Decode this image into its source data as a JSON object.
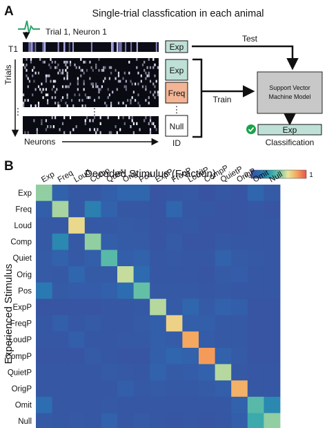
{
  "panel_a": {
    "letter": "A",
    "title": "Single-trial classfication in each animal",
    "trial_neuron_label": "Trial 1, Neuron 1",
    "t1_label": "T1",
    "trials_label": "Trials",
    "neurons_label": "Neurons",
    "ellipsis": "⋮",
    "test_label": "Test",
    "train_label": "Train",
    "id_boxes": [
      {
        "label": "Exp",
        "color": "#bfe0d6"
      },
      {
        "label": "Freq",
        "color": "#f2b595"
      },
      {
        "label": "Null",
        "color": "#ffffff"
      }
    ],
    "test_box": {
      "label": "Exp",
      "color": "#bfe0d6"
    },
    "id_label": "ID",
    "svm_label_line1": "Support Vector",
    "svm_label_line2": "Machine Model",
    "output_box": {
      "label": "Exp",
      "color": "#bfe0d6"
    },
    "classification_label": "Classification",
    "check_color": "#1aa34a",
    "trace_color": "#2ca36b"
  },
  "panel_b": {
    "letter": "B",
    "title": "Decoded Stimulus (Fraction)",
    "colorbar_min": "0",
    "colorbar_max": "1",
    "ylabel": "Experienced Stimulus",
    "colormap": [
      "#3a4fa0",
      "#2b6fb2",
      "#2aa0b0",
      "#6cc3a6",
      "#e7e69a",
      "#f6a35a",
      "#e8544c"
    ]
  },
  "chart_data": {
    "type": "heatmap",
    "title": "Decoded Stimulus (Fraction)",
    "xlabel": "Decoded Stimulus (Fraction)",
    "ylabel": "Experienced Stimulus",
    "x_categories": [
      "Exp",
      "Freq",
      "Loud",
      "Comp",
      "Quiet",
      "Orig",
      "Pos",
      "ExpP",
      "FreqP",
      "LoudP",
      "CompP",
      "QuietP",
      "OrigP",
      "Omit",
      "Null"
    ],
    "y_categories": [
      "Exp",
      "Freq",
      "Loud",
      "Comp",
      "Quiet",
      "Orig",
      "Pos",
      "ExpP",
      "FreqP",
      "LoudP",
      "CompP",
      "QuietP",
      "OrigP",
      "Omit",
      "Null"
    ],
    "value_range": [
      0,
      1
    ],
    "values": [
      [
        0.55,
        0.1,
        0.05,
        0.05,
        0.08,
        0.12,
        0.12,
        0.03,
        0.04,
        0.05,
        0.02,
        0.04,
        0.03,
        0.12,
        0.06
      ],
      [
        0.08,
        0.58,
        0.05,
        0.22,
        0.1,
        0.04,
        0.04,
        0.03,
        0.12,
        0.04,
        0.04,
        0.03,
        0.03,
        0.04,
        0.03
      ],
      [
        0.05,
        0.05,
        0.7,
        0.05,
        0.05,
        0.06,
        0.05,
        0.03,
        0.04,
        0.05,
        0.03,
        0.03,
        0.03,
        0.04,
        0.04
      ],
      [
        0.05,
        0.25,
        0.05,
        0.55,
        0.08,
        0.06,
        0.06,
        0.03,
        0.06,
        0.03,
        0.03,
        0.05,
        0.04,
        0.04,
        0.04
      ],
      [
        0.06,
        0.1,
        0.05,
        0.08,
        0.45,
        0.08,
        0.1,
        0.04,
        0.05,
        0.04,
        0.04,
        0.1,
        0.06,
        0.05,
        0.04
      ],
      [
        0.06,
        0.05,
        0.12,
        0.06,
        0.06,
        0.62,
        0.14,
        0.04,
        0.04,
        0.04,
        0.03,
        0.06,
        0.07,
        0.04,
        0.04
      ],
      [
        0.2,
        0.06,
        0.07,
        0.07,
        0.09,
        0.15,
        0.48,
        0.05,
        0.05,
        0.05,
        0.04,
        0.05,
        0.04,
        0.04,
        0.04
      ],
      [
        0.03,
        0.03,
        0.03,
        0.03,
        0.04,
        0.04,
        0.05,
        0.6,
        0.06,
        0.12,
        0.06,
        0.1,
        0.08,
        0.03,
        0.03
      ],
      [
        0.04,
        0.08,
        0.04,
        0.06,
        0.04,
        0.04,
        0.06,
        0.08,
        0.72,
        0.08,
        0.08,
        0.05,
        0.05,
        0.03,
        0.03
      ],
      [
        0.04,
        0.04,
        0.08,
        0.04,
        0.04,
        0.05,
        0.05,
        0.08,
        0.07,
        0.82,
        0.07,
        0.05,
        0.05,
        0.03,
        0.03
      ],
      [
        0.03,
        0.03,
        0.03,
        0.06,
        0.04,
        0.03,
        0.03,
        0.08,
        0.12,
        0.1,
        0.85,
        0.1,
        0.06,
        0.03,
        0.03
      ],
      [
        0.04,
        0.04,
        0.04,
        0.04,
        0.06,
        0.05,
        0.04,
        0.1,
        0.06,
        0.07,
        0.1,
        0.6,
        0.05,
        0.04,
        0.04
      ],
      [
        0.04,
        0.04,
        0.04,
        0.04,
        0.04,
        0.08,
        0.05,
        0.06,
        0.05,
        0.05,
        0.06,
        0.08,
        0.8,
        0.04,
        0.04
      ],
      [
        0.16,
        0.04,
        0.04,
        0.04,
        0.05,
        0.04,
        0.04,
        0.04,
        0.04,
        0.04,
        0.04,
        0.04,
        0.1,
        0.45,
        0.25
      ],
      [
        0.05,
        0.04,
        0.05,
        0.04,
        0.1,
        0.04,
        0.06,
        0.04,
        0.03,
        0.04,
        0.03,
        0.04,
        0.08,
        0.38,
        0.55
      ]
    ]
  }
}
